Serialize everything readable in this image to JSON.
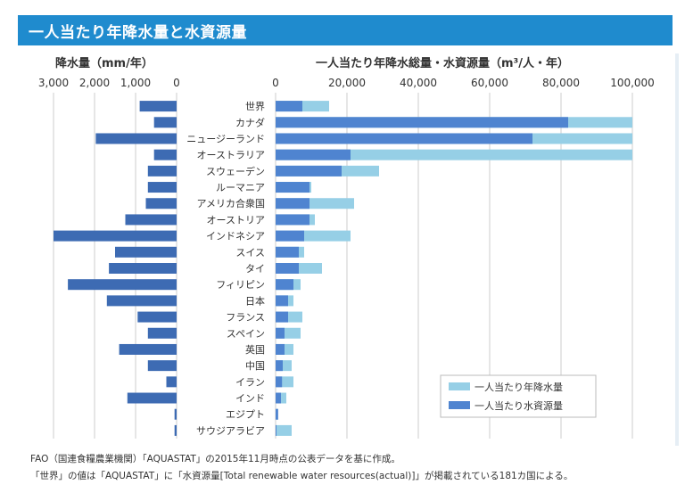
{
  "header": {
    "title": "一人当たり年降水量と水資源量"
  },
  "notes": [
    "FAO（国連食糧農業機関）「AQUASTAT」の2015年11月時点の公表データを基に作成。",
    "「世界」の値は「AQUASTAT」に「水資源量[Total renewable water resources(actual)]」が掲載されている181カ国による。"
  ],
  "colors": {
    "header_bg": "#1f8bce",
    "dark_bar": "#3d6bb3",
    "resources_bar": "#4f84d0",
    "precip_bar": "#96cfe6",
    "gridline": "#cccccc"
  },
  "chart_data": [
    {
      "type": "bar",
      "orientation": "horizontal",
      "direction": "right-to-left",
      "title": "降水量（mm/年）",
      "xlim": [
        3000,
        0
      ],
      "ticks": [
        "3,000",
        "2,000",
        "1,000",
        "0"
      ],
      "tick_values": [
        3000,
        2000,
        1000,
        0
      ],
      "grid": true,
      "categories": [
        "世界",
        "カナダ",
        "ニュージーランド",
        "オーストラリア",
        "スウェーデン",
        "ルーマニア",
        "アメリカ合衆国",
        "オーストリア",
        "インドネシア",
        "スイス",
        "タイ",
        "フィリピン",
        "日本",
        "フランス",
        "スペイン",
        "英国",
        "中国",
        "イラン",
        "インド",
        "エジプト",
        "サウジアラビア"
      ],
      "values": [
        900,
        550,
        1970,
        550,
        700,
        700,
        750,
        1250,
        3000,
        1500,
        1650,
        2650,
        1700,
        950,
        700,
        1400,
        700,
        250,
        1200,
        50,
        50
      ]
    },
    {
      "type": "bar",
      "orientation": "horizontal",
      "stacked": false,
      "title": "一人当たり年降水総量・水資源量（m³/人・年）",
      "xlim": [
        0,
        100000
      ],
      "ticks": [
        "0",
        "20,000",
        "40,000",
        "60,000",
        "80,000",
        "100,000"
      ],
      "tick_values": [
        0,
        20000,
        40000,
        60000,
        80000,
        100000
      ],
      "grid": true,
      "legend_position": "bottom-right",
      "categories": [
        "世界",
        "カナダ",
        "ニュージーランド",
        "オーストラリア",
        "スウェーデン",
        "ルーマニア",
        "アメリカ合衆国",
        "オーストリア",
        "インドネシア",
        "スイス",
        "タイ",
        "フィリピン",
        "日本",
        "フランス",
        "スペイン",
        "英国",
        "中国",
        "イラン",
        "インド",
        "エジプト",
        "サウジアラビア"
      ],
      "series": [
        {
          "name": "一人当たり年降水量",
          "color": "#96cfe6",
          "values": [
            15000,
            100000,
            100000,
            100000,
            29000,
            10000,
            22000,
            11000,
            21000,
            8000,
            13000,
            7000,
            5000,
            7500,
            7000,
            5000,
            4500,
            5000,
            3000,
            700,
            4500
          ]
        },
        {
          "name": "一人当たり水資源量",
          "color": "#4f84d0",
          "values": [
            7500,
            82000,
            72000,
            21000,
            18500,
            9500,
            9500,
            9500,
            8000,
            6500,
            6500,
            5000,
            3500,
            3500,
            2500,
            2500,
            2000,
            1800,
            1500,
            700,
            100
          ]
        }
      ]
    }
  ]
}
